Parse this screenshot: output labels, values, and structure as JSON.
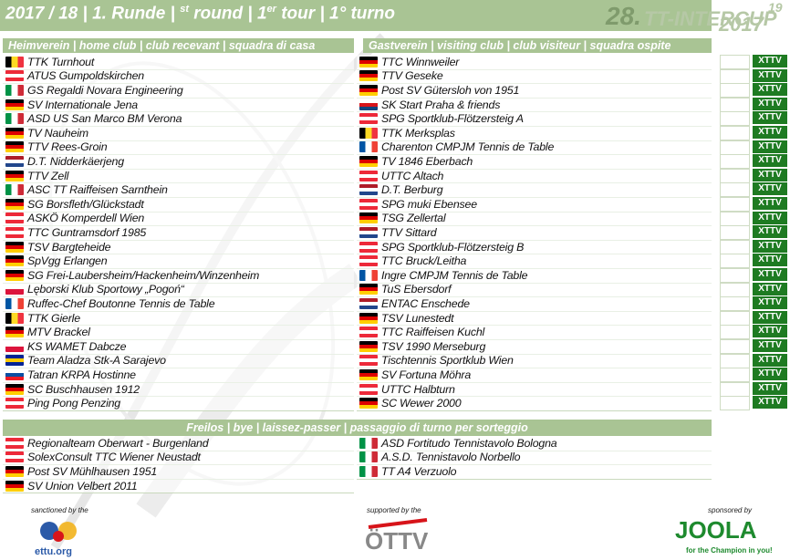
{
  "title": {
    "season": "2017 / 18 | 1. Runde | ",
    "st": "st",
    "round": " round | 1",
    "er": "er",
    "rest": " tour | 1° turno"
  },
  "event_logo": {
    "number": "28.",
    "name": "TT-INTERCUP",
    "year": "2017",
    "edition": "19"
  },
  "headers": {
    "home": "Heimverein | home club | club recevant | squadra di casa",
    "away": "Gastverein | visiting club | club visiteur | squadra ospite"
  },
  "flag_colors": {
    "de": [
      "#000000",
      "#dd0000",
      "#ffce00"
    ],
    "at": [
      "#ed2939",
      "#ffffff",
      "#ed2939"
    ],
    "it": [
      "#009246",
      "#ffffff",
      "#ce2b37"
    ],
    "be": [
      "#000000",
      "#fdda24",
      "#ef3340"
    ],
    "nl": [
      "#ae1c28",
      "#ffffff",
      "#21468b"
    ],
    "dk": [
      "#c8102e",
      "#ffffff",
      "#c8102e"
    ],
    "cz": [
      "#ffffff",
      "#d7141a",
      "#11457e"
    ],
    "fr": [
      "#0055a4",
      "#ffffff",
      "#ef4135"
    ],
    "pl": [
      "#ffffff",
      "#dc143c",
      "#dc143c"
    ],
    "ba": [
      "#002395",
      "#fecb00",
      "#002395"
    ],
    "sk": [
      "#ffffff",
      "#0b4ea2",
      "#ee1c25"
    ]
  },
  "matches": [
    {
      "home": "TTK Turnhout",
      "hf": "be",
      "away": "TTC Winnweiler",
      "af": "de"
    },
    {
      "home": "ATUS Gumpoldskirchen",
      "hf": "at",
      "away": "TTV Geseke",
      "af": "de"
    },
    {
      "home": "GS Regaldi Novara Engineering",
      "hf": "it",
      "away": "Post SV Gütersloh von 1951",
      "af": "de"
    },
    {
      "home": "SV Internationale Jena",
      "hf": "de",
      "away": "SK Start Praha & friends",
      "af": "cz"
    },
    {
      "home": "ASD US San Marco BM Verona",
      "hf": "it",
      "away": "SPG Sportklub-Flötzersteig A",
      "af": "at"
    },
    {
      "home": "TV Nauheim",
      "hf": "de",
      "away": "TTK Merksplas",
      "af": "be"
    },
    {
      "home": "TTV Rees-Groin",
      "hf": "de",
      "away": "Charenton CMPJM Tennis de Table",
      "af": "fr"
    },
    {
      "home": "D.T. Nidderkäerjeng",
      "hf": "nl",
      "away": "TV 1846 Eberbach",
      "af": "de"
    },
    {
      "home": "TTV Zell",
      "hf": "de",
      "away": "UTTC Altach",
      "af": "at"
    },
    {
      "home": "ASC TT Raiffeisen Sarnthein",
      "hf": "it",
      "away": "D.T. Berburg",
      "af": "nl"
    },
    {
      "home": "SG Borsfleth/Glückstadt",
      "hf": "de",
      "away": "SPG muki Ebensee",
      "af": "at"
    },
    {
      "home": "ASKÖ Komperdell Wien",
      "hf": "at",
      "away": "TSG Zellertal",
      "af": "de"
    },
    {
      "home": "TTC Guntramsdorf 1985",
      "hf": "at",
      "away": "TTV Sittard",
      "af": "nl"
    },
    {
      "home": "TSV Bargteheide",
      "hf": "de",
      "away": "SPG Sportklub-Flötzersteig B",
      "af": "at"
    },
    {
      "home": "SpVgg Erlangen",
      "hf": "de",
      "away": "TTC Bruck/Leitha",
      "af": "at"
    },
    {
      "home": "SG Frei-Laubersheim/Hackenheim/Winzenheim",
      "hf": "de",
      "away": "Ingre CMPJM Tennis de Table",
      "af": "fr"
    },
    {
      "home": "Lęborski Klub Sportowy „Pogoń“",
      "hf": "pl",
      "away": "TuS Ebersdorf",
      "af": "de"
    },
    {
      "home": "Ruffec-Chef Boutonne Tennis de Table",
      "hf": "fr",
      "away": "ENTAC Enschede",
      "af": "nl"
    },
    {
      "home": "TTK Gierle",
      "hf": "be",
      "away": "TSV Lunestedt",
      "af": "de"
    },
    {
      "home": "MTV Brackel",
      "hf": "de",
      "away": "TTC Raiffeisen Kuchl",
      "af": "at"
    },
    {
      "home": "KS WAMET Dabcze",
      "hf": "pl",
      "away": "TSV 1990 Merseburg",
      "af": "de"
    },
    {
      "home": "Team Aladza Stk-A Sarajevo",
      "hf": "ba",
      "away": "Tischtennis Sportklub Wien",
      "af": "at"
    },
    {
      "home": "Tatran KRPA Hostinne",
      "hf": "sk",
      "away": "SV Fortuna Möhra",
      "af": "de"
    },
    {
      "home": "SC Buschhausen 1912",
      "hf": "de",
      "away": "UTTC Halbturn",
      "af": "at"
    },
    {
      "home": "Ping Pong Penzing",
      "hf": "at",
      "away": "SC Wewer 2000",
      "af": "de"
    }
  ],
  "ttv_label": "XTTV",
  "bye_header": "Freilos | bye | laissez-passer | passaggio di turno per sorteggio",
  "byes_left": [
    {
      "name": "Regionalteam Oberwart - Burgenland",
      "f": "at"
    },
    {
      "name": "SolexConsult TTC Wiener Neustadt",
      "f": "at"
    },
    {
      "name": "Post SV Mühlhausen 1951",
      "f": "de"
    },
    {
      "name": "SV Union Velbert 2011",
      "f": "de"
    }
  ],
  "byes_right": [
    {
      "name": "ASD Fortitudo Tennistavolo Bologna",
      "f": "it"
    },
    {
      "name": "A.S.D. Tennistavolo Norbello",
      "f": "it"
    },
    {
      "name": "TT A4 Verzuolo",
      "f": "it"
    }
  ],
  "footer": {
    "sanctioned": "sanctioned by the",
    "ettu": "ettu.org",
    "supported": "supported by the",
    "ottv": "ÖTTV",
    "sponsored": "sponsored by",
    "joola": "JOOLA",
    "slogan": "for the Champion in you!"
  }
}
